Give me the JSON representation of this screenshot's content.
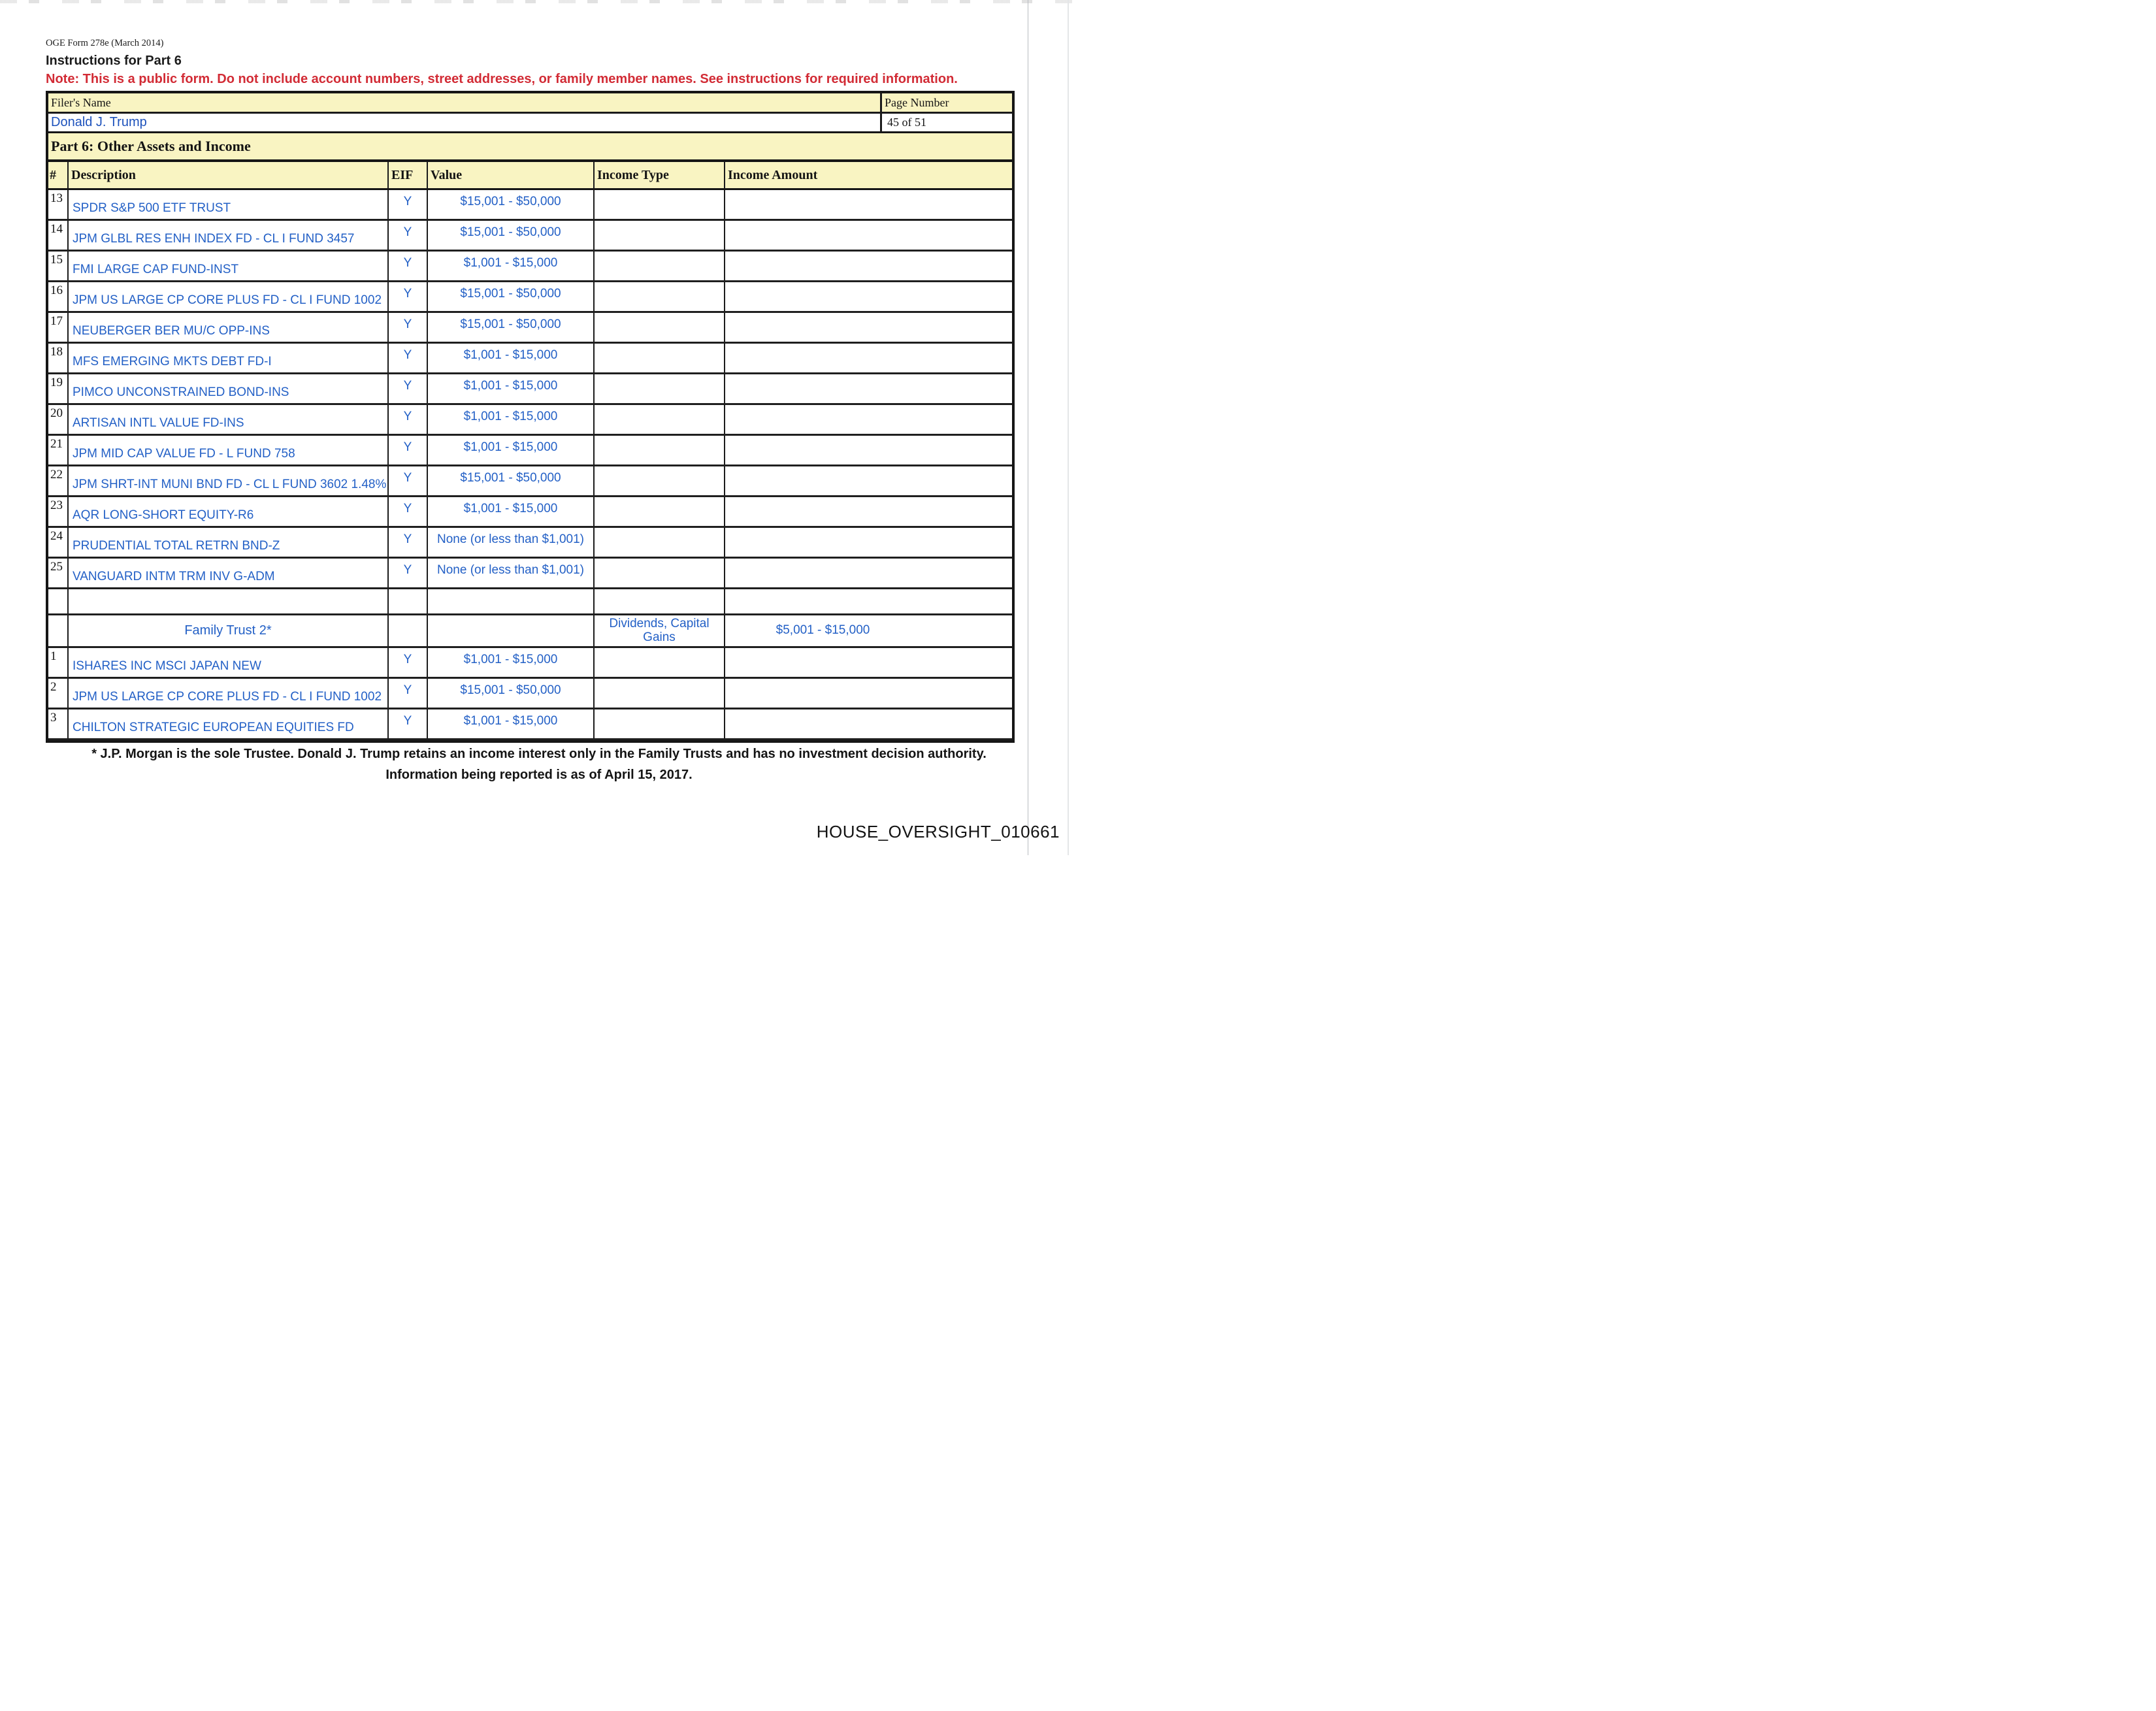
{
  "colors": {
    "accent_blue": "#2360c6",
    "filer_blue": "#1d52bc",
    "note_red": "#d22b35",
    "header_yellow": "#f9f4c2"
  },
  "header": {
    "form_id": "OGE Form 278e (March 2014)",
    "instructions": "Instructions for Part 6",
    "note": "Note: This is a public form. Do not include account numbers, street addresses, or family member names.  See instructions for required information.",
    "filer_label": "Filer's Name",
    "filer_name": "Donald J. Trump",
    "page_label": "Page Number",
    "page_value": "45 of 51"
  },
  "part": {
    "title": "Part 6: Other Assets and Income"
  },
  "table": {
    "columns": [
      "#",
      "Description",
      "EIF",
      "Value",
      "Income Type",
      "Income Amount"
    ],
    "rows": [
      {
        "type": "data",
        "num": "13",
        "description": "SPDR S&P 500 ETF TRUST",
        "eif": "Y",
        "value": "$15,001 - $50,000",
        "income_type": "",
        "income_amount": ""
      },
      {
        "type": "data",
        "num": "14",
        "description": "JPM GLBL RES ENH INDEX FD - CL I FUND 3457",
        "eif": "Y",
        "value": "$15,001 - $50,000",
        "income_type": "",
        "income_amount": ""
      },
      {
        "type": "data",
        "num": "15",
        "description": "FMI LARGE CAP FUND-INST",
        "eif": "Y",
        "value": "$1,001 - $15,000",
        "income_type": "",
        "income_amount": ""
      },
      {
        "type": "data",
        "num": "16",
        "description": "JPM US LARGE CP CORE PLUS FD - CL I FUND 1002",
        "eif": "Y",
        "value": "$15,001 - $50,000",
        "income_type": "",
        "income_amount": ""
      },
      {
        "type": "data",
        "num": "17",
        "description": "NEUBERGER BER MU/C OPP-INS",
        "eif": "Y",
        "value": "$15,001 - $50,000",
        "income_type": "",
        "income_amount": ""
      },
      {
        "type": "data",
        "num": "18",
        "description": "MFS EMERGING MKTS DEBT FD-I",
        "eif": "Y",
        "value": "$1,001 - $15,000",
        "income_type": "",
        "income_amount": ""
      },
      {
        "type": "data",
        "num": "19",
        "description": "PIMCO UNCONSTRAINED BOND-INS",
        "eif": "Y",
        "value": "$1,001 - $15,000",
        "income_type": "",
        "income_amount": ""
      },
      {
        "type": "data",
        "num": "20",
        "description": "ARTISAN INTL VALUE FD-INS",
        "eif": "Y",
        "value": "$1,001 - $15,000",
        "income_type": "",
        "income_amount": ""
      },
      {
        "type": "data",
        "num": "21",
        "description": "JPM MID CAP VALUE FD - L FUND 758",
        "eif": "Y",
        "value": "$1,001 - $15,000",
        "income_type": "",
        "income_amount": ""
      },
      {
        "type": "data",
        "num": "22",
        "description": "JPM SHRT-INT MUNI BND FD - CL L FUND 3602 1.48%",
        "eif": "Y",
        "value": "$15,001 - $50,000",
        "income_type": "",
        "income_amount": ""
      },
      {
        "type": "data",
        "num": "23",
        "description": "AQR LONG-SHORT EQUITY-R6",
        "eif": "Y",
        "value": "$1,001 - $15,000",
        "income_type": "",
        "income_amount": ""
      },
      {
        "type": "data",
        "num": "24",
        "description": "PRUDENTIAL TOTAL RETRN BND-Z",
        "eif": "Y",
        "value": "None (or less than $1,001)",
        "income_type": "",
        "income_amount": ""
      },
      {
        "type": "data",
        "num": "25",
        "description": "VANGUARD INTM TRM INV G-ADM",
        "eif": "Y",
        "value": "None (or less than $1,001)",
        "income_type": "",
        "income_amount": ""
      },
      {
        "type": "empty",
        "num": "",
        "description": "",
        "eif": "",
        "value": "",
        "income_type": "",
        "income_amount": ""
      },
      {
        "type": "group",
        "num": "",
        "description": "Family Trust 2*",
        "eif": "",
        "value": "",
        "income_type": "Dividends, Capital Gains",
        "income_amount": "$5,001 - $15,000"
      },
      {
        "type": "data",
        "num": "1",
        "description": "ISHARES INC MSCI JAPAN NEW",
        "eif": "Y",
        "value": "$1,001 - $15,000",
        "income_type": "",
        "income_amount": ""
      },
      {
        "type": "data",
        "num": "2",
        "description": "JPM US LARGE CP CORE PLUS FD - CL I FUND 1002",
        "eif": "Y",
        "value": "$15,001 - $50,000",
        "income_type": "",
        "income_amount": ""
      },
      {
        "type": "data",
        "num": "3",
        "description": "CHILTON STRATEGIC EUROPEAN EQUITIES FD",
        "eif": "Y",
        "value": "$1,001 - $15,000",
        "income_type": "",
        "income_amount": ""
      }
    ]
  },
  "footnotes": [
    "* J.P. Morgan is the sole Trustee. Donald J. Trump retains an income interest only in the Family Trusts and has no investment decision authority.",
    "Information being reported is as of April 15, 2017."
  ],
  "watermark": "HOUSE_OVERSIGHT_010661"
}
